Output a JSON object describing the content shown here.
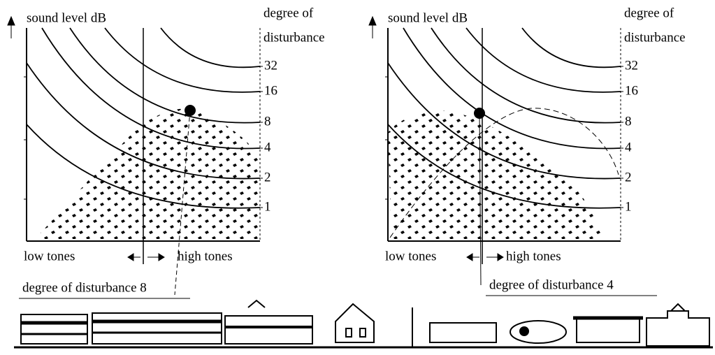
{
  "panels": [
    {
      "y_axis_label": "sound level dB",
      "right_label": [
        "degree of",
        "disturbance"
      ],
      "levels": [
        32,
        16,
        8,
        4,
        2,
        1
      ],
      "low_label": "low tones",
      "high_label": "high tones",
      "caption": "degree of disturbance 8"
    },
    {
      "y_axis_label": "sound level dB",
      "right_label": [
        "degree of",
        "disturbance"
      ],
      "levels": [
        32,
        16,
        8,
        4,
        2,
        1
      ],
      "low_label": "low tones",
      "high_label": "high tones",
      "caption": "degree of disturbance 4"
    }
  ]
}
